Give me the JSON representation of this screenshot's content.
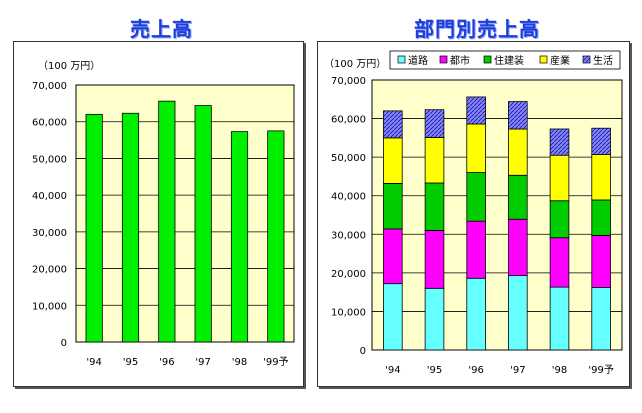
{
  "titles": {
    "left": "売上高",
    "right": "部門別売上高"
  },
  "chart_data": [
    {
      "type": "bar",
      "title": "売上高",
      "unit_label": "（100 万円）",
      "categories": [
        "'94",
        "'95",
        "'96",
        "'97",
        "'98",
        "'99予"
      ],
      "values": [
        62000,
        62300,
        65600,
        64400,
        57300,
        57500
      ],
      "ylim": [
        0,
        70000
      ],
      "yticks": [
        "0",
        "10,000",
        "20,000",
        "30,000",
        "40,000",
        "50,000",
        "60,000",
        "70,000"
      ],
      "grid": true,
      "colors": {
        "bar": "#00ee00",
        "plot_bg": "#ffffcc"
      }
    },
    {
      "type": "bar",
      "stacked": true,
      "title": "部門別売上高",
      "unit_label": "（100 万円）",
      "categories": [
        "'94",
        "'95",
        "'96",
        "'97",
        "'98",
        "'99予"
      ],
      "series": [
        {
          "name": "道路",
          "color": "#66ffff",
          "values": [
            17200,
            16000,
            18600,
            19300,
            16300,
            16200
          ]
        },
        {
          "name": "都市",
          "color": "#ff00ff",
          "values": [
            14200,
            15000,
            14800,
            14600,
            12800,
            13500
          ]
        },
        {
          "name": "住建装",
          "color": "#00cc00",
          "values": [
            11800,
            12300,
            12600,
            11400,
            9600,
            9200
          ]
        },
        {
          "name": "産業",
          "color": "#ffff00",
          "values": [
            11800,
            11800,
            12600,
            12000,
            11800,
            11800
          ]
        },
        {
          "name": "生活",
          "color": "#8888ff",
          "values": [
            7000,
            7200,
            7000,
            7100,
            6800,
            6800
          ]
        }
      ],
      "ylim": [
        0,
        70000
      ],
      "yticks": [
        "0",
        "10,000",
        "20,000",
        "30,000",
        "40,000",
        "50,000",
        "60,000",
        "70,000"
      ],
      "grid": true,
      "legend_position": "top",
      "colors": {
        "plot_bg": "#ffffcc"
      }
    }
  ]
}
